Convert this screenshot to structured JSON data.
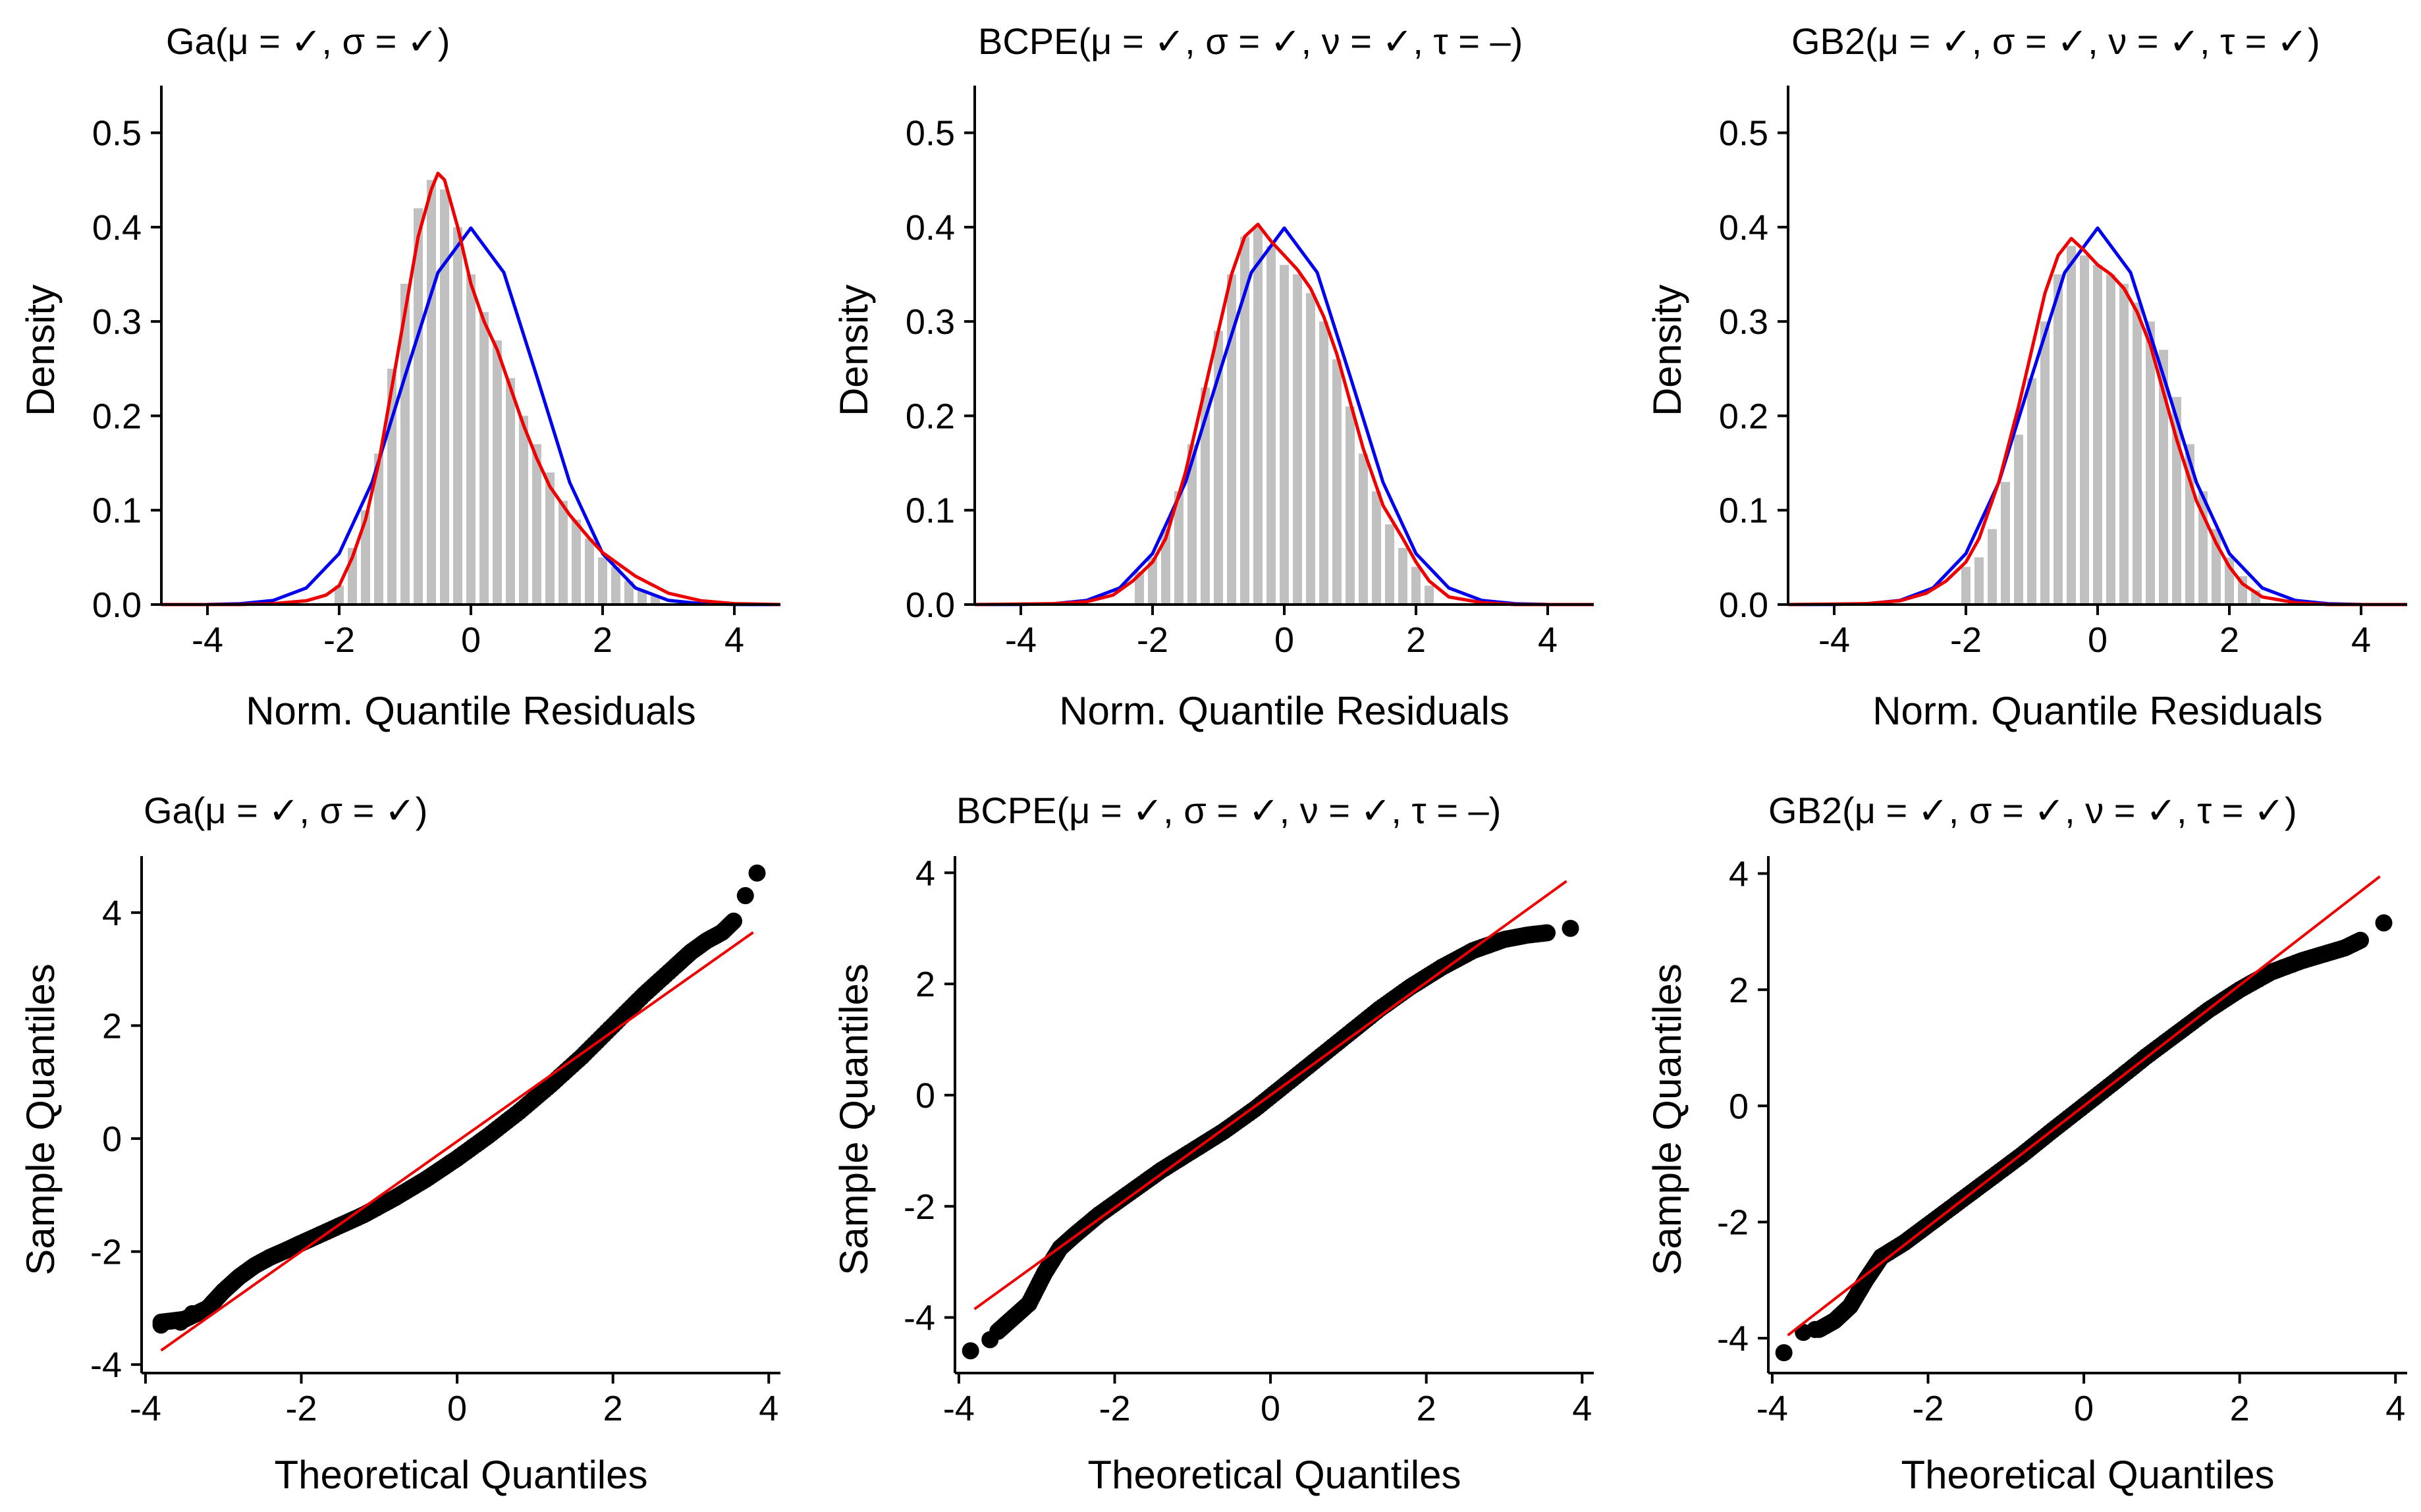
{
  "colors": {
    "histogram": "#c0c0c0",
    "normal_curve": "#0000ee",
    "density_curve": "#ee0000",
    "qq_points": "#000000",
    "qq_line": "#ee0000",
    "axis": "#000000"
  },
  "chart_data": [
    {
      "id": "hist-ga",
      "type": "bar",
      "title": "Ga(μ = ✓, σ = ✓)",
      "xlabel": "Norm. Quantile Residuals",
      "ylabel": "Density",
      "xlim": [
        -4.7,
        4.7
      ],
      "ylim": [
        0,
        0.55
      ],
      "xticks": [
        -4,
        -2,
        0,
        2,
        4
      ],
      "yticks": [
        0,
        0.1,
        0.2,
        0.3,
        0.4,
        0.5
      ],
      "xtick_labels": [
        "-4",
        "-2",
        "0",
        "2",
        "4"
      ],
      "ytick_labels": [
        "0.0",
        "0.1",
        "0.2",
        "0.3",
        "0.4",
        "0.5"
      ],
      "grid": false,
      "bin_width": 0.2,
      "bin_centers": [
        -2.0,
        -1.8,
        -1.6,
        -1.4,
        -1.2,
        -1.0,
        -0.8,
        -0.6,
        -0.4,
        -0.2,
        0.0,
        0.2,
        0.4,
        0.6,
        0.8,
        1.0,
        1.2,
        1.4,
        1.6,
        1.8,
        2.0,
        2.2,
        2.4,
        2.6,
        2.8
      ],
      "values": [
        0.02,
        0.06,
        0.1,
        0.16,
        0.25,
        0.34,
        0.42,
        0.45,
        0.44,
        0.4,
        0.35,
        0.31,
        0.28,
        0.24,
        0.2,
        0.17,
        0.14,
        0.11,
        0.09,
        0.07,
        0.05,
        0.04,
        0.025,
        0.015,
        0.01
      ],
      "series": [
        {
          "name": "normal",
          "x": [
            -4.7,
            -4.0,
            -3.5,
            -3.0,
            -2.5,
            -2.0,
            -1.5,
            -1.0,
            -0.5,
            0.0,
            0.5,
            1.0,
            1.5,
            2.0,
            2.5,
            3.0,
            3.5,
            4.0,
            4.7
          ],
          "values": [
            0.0,
            0.0001,
            0.0009,
            0.0044,
            0.0175,
            0.054,
            0.1295,
            0.242,
            0.352,
            0.399,
            0.352,
            0.242,
            0.1295,
            0.054,
            0.0175,
            0.0044,
            0.0009,
            0.0001,
            0.0
          ]
        },
        {
          "name": "density",
          "x": [
            -4.7,
            -3.5,
            -3.0,
            -2.5,
            -2.2,
            -2.0,
            -1.8,
            -1.6,
            -1.4,
            -1.2,
            -1.0,
            -0.8,
            -0.6,
            -0.5,
            -0.4,
            -0.2,
            0.0,
            0.2,
            0.4,
            0.6,
            0.8,
            1.0,
            1.2,
            1.5,
            1.8,
            2.0,
            2.5,
            3.0,
            3.5,
            4.0,
            4.7
          ],
          "values": [
            0.0,
            0.0,
            0.001,
            0.004,
            0.01,
            0.02,
            0.05,
            0.09,
            0.15,
            0.23,
            0.31,
            0.39,
            0.44,
            0.457,
            0.45,
            0.4,
            0.34,
            0.3,
            0.27,
            0.23,
            0.19,
            0.155,
            0.125,
            0.095,
            0.07,
            0.055,
            0.03,
            0.012,
            0.004,
            0.001,
            0.0
          ]
        }
      ]
    },
    {
      "id": "hist-bcpe",
      "type": "bar",
      "title": "BCPE(μ = ✓, σ = ✓, ν = ✓, τ = –)",
      "xlabel": "Norm. Quantile Residuals",
      "ylabel": "Density",
      "xlim": [
        -4.7,
        4.7
      ],
      "ylim": [
        0,
        0.55
      ],
      "xticks": [
        -4,
        -2,
        0,
        2,
        4
      ],
      "yticks": [
        0,
        0.1,
        0.2,
        0.3,
        0.4,
        0.5
      ],
      "xtick_labels": [
        "-4",
        "-2",
        "0",
        "2",
        "4"
      ],
      "ytick_labels": [
        "0.0",
        "0.1",
        "0.2",
        "0.3",
        "0.4",
        "0.5"
      ],
      "grid": false,
      "bin_width": 0.2,
      "bin_centers": [
        -2.2,
        -2.0,
        -1.8,
        -1.6,
        -1.4,
        -1.2,
        -1.0,
        -0.8,
        -0.6,
        -0.4,
        -0.2,
        0.0,
        0.2,
        0.4,
        0.6,
        0.8,
        1.0,
        1.2,
        1.4,
        1.6,
        1.8,
        2.0,
        2.2
      ],
      "values": [
        0.035,
        0.05,
        0.08,
        0.12,
        0.17,
        0.23,
        0.29,
        0.35,
        0.39,
        0.4,
        0.38,
        0.36,
        0.35,
        0.33,
        0.3,
        0.26,
        0.21,
        0.16,
        0.12,
        0.085,
        0.06,
        0.04,
        0.02
      ],
      "series": [
        {
          "name": "normal",
          "x": [
            -4.7,
            -4.0,
            -3.5,
            -3.0,
            -2.5,
            -2.0,
            -1.5,
            -1.0,
            -0.5,
            0.0,
            0.5,
            1.0,
            1.5,
            2.0,
            2.5,
            3.0,
            3.5,
            4.0,
            4.7
          ],
          "values": [
            0.0,
            0.0001,
            0.0009,
            0.0044,
            0.0175,
            0.054,
            0.1295,
            0.242,
            0.352,
            0.399,
            0.352,
            0.242,
            0.1295,
            0.054,
            0.0175,
            0.0044,
            0.0009,
            0.0001,
            0.0
          ]
        },
        {
          "name": "density",
          "x": [
            -4.7,
            -3.5,
            -3.0,
            -2.6,
            -2.3,
            -2.0,
            -1.8,
            -1.5,
            -1.2,
            -1.0,
            -0.8,
            -0.6,
            -0.4,
            -0.2,
            0.0,
            0.2,
            0.4,
            0.6,
            0.8,
            1.0,
            1.2,
            1.5,
            1.8,
            2.0,
            2.2,
            2.5,
            3.0,
            3.5,
            4.0,
            4.7
          ],
          "values": [
            0.0,
            0.001,
            0.003,
            0.01,
            0.025,
            0.045,
            0.07,
            0.14,
            0.23,
            0.29,
            0.35,
            0.39,
            0.403,
            0.385,
            0.37,
            0.355,
            0.335,
            0.305,
            0.265,
            0.215,
            0.165,
            0.105,
            0.07,
            0.045,
            0.025,
            0.008,
            0.002,
            0.0,
            0.0,
            0.0
          ]
        }
      ]
    },
    {
      "id": "hist-gb2",
      "type": "bar",
      "title": "GB2(μ = ✓, σ = ✓, ν = ✓, τ = ✓)",
      "xlabel": "Norm. Quantile Residuals",
      "ylabel": "Density",
      "xlim": [
        -4.7,
        4.7
      ],
      "ylim": [
        0,
        0.55
      ],
      "xticks": [
        -4,
        -2,
        0,
        2,
        4
      ],
      "yticks": [
        0,
        0.1,
        0.2,
        0.3,
        0.4,
        0.5
      ],
      "xtick_labels": [
        "-4",
        "-2",
        "0",
        "2",
        "4"
      ],
      "ytick_labels": [
        "0.0",
        "0.1",
        "0.2",
        "0.3",
        "0.4",
        "0.5"
      ],
      "grid": false,
      "bin_width": 0.2,
      "bin_centers": [
        -2.0,
        -1.8,
        -1.6,
        -1.4,
        -1.2,
        -1.0,
        -0.8,
        -0.6,
        -0.4,
        -0.2,
        0.0,
        0.2,
        0.4,
        0.6,
        0.8,
        1.0,
        1.2,
        1.4,
        1.6,
        1.8,
        2.0,
        2.2,
        2.4
      ],
      "values": [
        0.04,
        0.05,
        0.08,
        0.13,
        0.18,
        0.24,
        0.3,
        0.35,
        0.38,
        0.37,
        0.36,
        0.35,
        0.34,
        0.32,
        0.3,
        0.27,
        0.22,
        0.17,
        0.12,
        0.08,
        0.05,
        0.03,
        0.015
      ],
      "series": [
        {
          "name": "normal",
          "x": [
            -4.7,
            -4.0,
            -3.5,
            -3.0,
            -2.5,
            -2.0,
            -1.5,
            -1.0,
            -0.5,
            0.0,
            0.5,
            1.0,
            1.5,
            2.0,
            2.5,
            3.0,
            3.5,
            4.0,
            4.7
          ],
          "values": [
            0.0,
            0.0001,
            0.0009,
            0.0044,
            0.0175,
            0.054,
            0.1295,
            0.242,
            0.352,
            0.399,
            0.352,
            0.242,
            0.1295,
            0.054,
            0.0175,
            0.0044,
            0.0009,
            0.0001,
            0.0
          ]
        },
        {
          "name": "density",
          "x": [
            -4.7,
            -3.5,
            -3.0,
            -2.6,
            -2.3,
            -2.0,
            -1.8,
            -1.5,
            -1.2,
            -1.0,
            -0.8,
            -0.6,
            -0.4,
            -0.2,
            0.0,
            0.2,
            0.4,
            0.6,
            0.8,
            1.0,
            1.2,
            1.5,
            1.8,
            2.0,
            2.2,
            2.5,
            3.0,
            3.5,
            4.0,
            4.7
          ],
          "values": [
            0.0,
            0.001,
            0.004,
            0.012,
            0.025,
            0.045,
            0.07,
            0.13,
            0.21,
            0.27,
            0.33,
            0.37,
            0.388,
            0.375,
            0.36,
            0.35,
            0.335,
            0.31,
            0.275,
            0.225,
            0.175,
            0.11,
            0.065,
            0.04,
            0.022,
            0.008,
            0.002,
            0.0,
            0.0,
            0.0
          ]
        }
      ]
    },
    {
      "id": "qq-ga",
      "type": "scatter",
      "title": "Ga(μ = ✓, σ = ✓)",
      "xlabel": "Theoretical Quantiles",
      "ylabel": "Sample Quantiles",
      "xlim": [
        -4.05,
        4.15
      ],
      "ylim": [
        -4.15,
        5.0
      ],
      "xticks": [
        -4,
        -2,
        0,
        2,
        4
      ],
      "yticks": [
        -4,
        -2,
        0,
        2,
        4
      ],
      "xtick_labels": [
        "-4",
        "-2",
        "0",
        "2",
        "4"
      ],
      "ytick_labels": [
        "-4",
        "-2",
        "0",
        "2",
        "4"
      ],
      "grid": false,
      "qq_curve": {
        "x": [
          -3.8,
          -3.5,
          -3.2,
          -3.0,
          -2.8,
          -2.6,
          -2.4,
          -2.2,
          -2.0,
          -1.6,
          -1.2,
          -0.8,
          -0.4,
          0.0,
          0.4,
          0.8,
          1.2,
          1.6,
          2.0,
          2.4,
          2.8,
          3.0,
          3.2,
          3.4,
          3.55
        ],
        "y": [
          -3.25,
          -3.2,
          -3.0,
          -2.7,
          -2.45,
          -2.25,
          -2.1,
          -1.98,
          -1.85,
          -1.6,
          -1.35,
          -1.05,
          -0.72,
          -0.35,
          0.05,
          0.48,
          0.95,
          1.45,
          2.0,
          2.55,
          3.05,
          3.3,
          3.5,
          3.65,
          3.85
        ]
      },
      "outliers": {
        "x": [
          -3.8,
          -3.55,
          -3.4,
          3.7,
          3.85
        ],
        "y": [
          -3.3,
          -3.25,
          -3.1,
          4.3,
          4.7
        ]
      },
      "reference_line": {
        "x": [
          -3.8,
          3.8
        ],
        "y": [
          -3.75,
          3.65
        ]
      }
    },
    {
      "id": "qq-bcpe",
      "type": "scatter",
      "title": "BCPE(μ = ✓, σ = ✓, ν = ✓, τ = –)",
      "xlabel": "Theoretical Quantiles",
      "ylabel": "Sample Quantiles",
      "xlim": [
        -4.05,
        4.15
      ],
      "ylim": [
        -5.0,
        4.3
      ],
      "xticks": [
        -4,
        -2,
        0,
        2,
        4
      ],
      "yticks": [
        -4,
        -2,
        0,
        2,
        4
      ],
      "xtick_labels": [
        "-4",
        "-2",
        "0",
        "2",
        "4"
      ],
      "ytick_labels": [
        "-4",
        "-2",
        "0",
        "2",
        "4"
      ],
      "grid": false,
      "qq_curve": {
        "x": [
          -3.5,
          -3.3,
          -3.1,
          -2.9,
          -2.7,
          -2.5,
          -2.2,
          -1.8,
          -1.4,
          -1.0,
          -0.6,
          -0.2,
          0.2,
          0.6,
          1.0,
          1.4,
          1.8,
          2.2,
          2.6,
          3.0,
          3.3,
          3.55
        ],
        "y": [
          -4.25,
          -4.0,
          -3.75,
          -3.2,
          -2.75,
          -2.5,
          -2.15,
          -1.75,
          -1.35,
          -1.0,
          -0.65,
          -0.25,
          0.2,
          0.65,
          1.1,
          1.55,
          1.95,
          2.3,
          2.6,
          2.8,
          2.88,
          2.92
        ]
      },
      "outliers": {
        "x": [
          -3.85,
          -3.6,
          3.85
        ],
        "y": [
          -4.6,
          -4.4,
          3.0
        ]
      },
      "reference_line": {
        "x": [
          -3.8,
          3.8
        ],
        "y": [
          -3.85,
          3.85
        ]
      }
    },
    {
      "id": "qq-gb2",
      "type": "scatter",
      "title": "GB2(μ = ✓, σ = ✓, ν = ✓, τ = ✓)",
      "xlabel": "Theoretical Quantiles",
      "ylabel": "Sample Quantiles",
      "xlim": [
        -4.05,
        4.15
      ],
      "ylim": [
        -4.6,
        4.3
      ],
      "xticks": [
        -4,
        -2,
        0,
        2,
        4
      ],
      "yticks": [
        -4,
        -2,
        0,
        2,
        4
      ],
      "xtick_labels": [
        "-4",
        "-2",
        "0",
        "2",
        "4"
      ],
      "ytick_labels": [
        "-4",
        "-2",
        "0",
        "2",
        "4"
      ],
      "grid": false,
      "qq_curve": {
        "x": [
          -3.4,
          -3.2,
          -3.0,
          -2.8,
          -2.6,
          -2.3,
          -2.0,
          -1.6,
          -1.2,
          -0.8,
          -0.4,
          0.0,
          0.4,
          0.8,
          1.2,
          1.6,
          2.0,
          2.4,
          2.8,
          3.1,
          3.35,
          3.55
        ],
        "y": [
          -3.85,
          -3.7,
          -3.45,
          -3.0,
          -2.6,
          -2.35,
          -2.05,
          -1.65,
          -1.25,
          -0.85,
          -0.42,
          0.0,
          0.42,
          0.85,
          1.25,
          1.65,
          2.0,
          2.3,
          2.5,
          2.62,
          2.72,
          2.85
        ]
      },
      "outliers": {
        "x": [
          -3.85,
          -3.6,
          -3.45,
          3.85
        ],
        "y": [
          -4.25,
          -3.9,
          -3.85,
          3.15
        ]
      },
      "reference_line": {
        "x": [
          -3.8,
          3.8
        ],
        "y": [
          -3.95,
          3.95
        ]
      }
    }
  ]
}
